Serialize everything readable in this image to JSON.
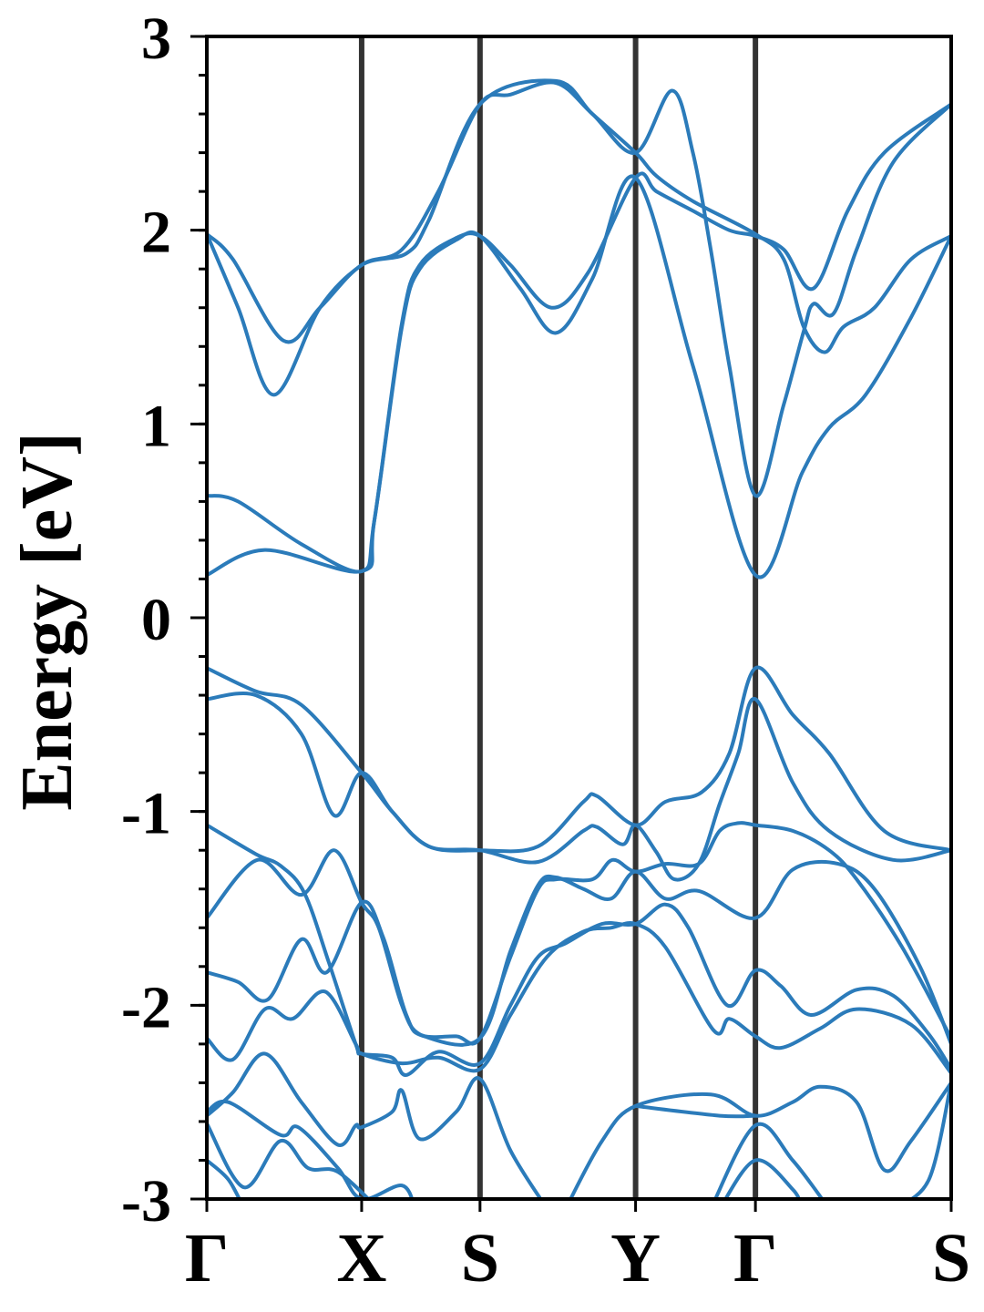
{
  "chart_data": {
    "type": "line",
    "title": "",
    "ylabel": "Energy [eV]",
    "xlabel": "",
    "ylim": [
      -3,
      3
    ],
    "xlim": [
      0,
      1
    ],
    "yticks": [
      "3",
      "2",
      "1",
      "0",
      "-1",
      "-2",
      "-3"
    ],
    "ytick_values": [
      3,
      2,
      1,
      0,
      -1,
      -2,
      -3
    ],
    "yminor_step": 0.2,
    "kpoints": [
      {
        "label": "Γ",
        "k": 0
      },
      {
        "label": "X",
        "k": 0.208
      },
      {
        "label": "S",
        "k": 0.367
      },
      {
        "label": "Y",
        "k": 0.576
      },
      {
        "label": "Γ",
        "k": 0.737
      },
      {
        "label": "S",
        "k": 1.0
      }
    ],
    "colors": {
      "bands": "#2b7bba",
      "kpoint_lines": "#333333",
      "axes": "#000000"
    },
    "grid": false,
    "bands": [
      [
        [
          0,
          0.22
        ],
        [
          0.078,
          0.35
        ],
        [
          0.208,
          0.24
        ],
        [
          0.225,
          0.5
        ],
        [
          0.262,
          1.5
        ],
        [
          0.286,
          1.8
        ],
        [
          0.335,
          1.95
        ],
        [
          0.367,
          1.97
        ],
        [
          0.421,
          1.7
        ],
        [
          0.469,
          1.47
        ],
        [
          0.518,
          1.75
        ],
        [
          0.576,
          2.27
        ],
        [
          0.653,
          1.3
        ],
        [
          0.737,
          0.22
        ],
        [
          0.8,
          0.75
        ],
        [
          0.836,
          0.98
        ],
        [
          0.885,
          1.15
        ],
        [
          0.946,
          1.55
        ],
        [
          1,
          1.97
        ]
      ],
      [
        [
          0,
          0.63
        ],
        [
          0.042,
          0.6
        ],
        [
          0.127,
          0.38
        ],
        [
          0.208,
          0.24
        ],
        [
          0.225,
          0.5
        ],
        [
          0.262,
          1.52
        ],
        [
          0.286,
          1.82
        ],
        [
          0.335,
          1.96
        ],
        [
          0.367,
          1.97
        ],
        [
          0.408,
          1.82
        ],
        [
          0.463,
          1.6
        ],
        [
          0.512,
          1.78
        ],
        [
          0.576,
          2.27
        ],
        [
          0.604,
          2.2
        ],
        [
          0.653,
          2.1
        ],
        [
          0.702,
          2.0
        ],
        [
          0.737,
          1.97
        ],
        [
          0.775,
          1.9
        ],
        [
          0.815,
          1.7
        ],
        [
          0.861,
          2.1
        ],
        [
          0.91,
          2.4
        ],
        [
          1,
          2.65
        ]
      ],
      [
        [
          0,
          1.98
        ],
        [
          0.042,
          1.6
        ],
        [
          0.09,
          1.15
        ],
        [
          0.152,
          1.6
        ],
        [
          0.208,
          1.82
        ],
        [
          0.262,
          1.9
        ],
        [
          0.311,
          2.2
        ],
        [
          0.367,
          2.65
        ],
        [
          0.408,
          2.7
        ],
        [
          0.469,
          2.76
        ],
        [
          0.518,
          2.6
        ],
        [
          0.576,
          2.4
        ],
        [
          0.625,
          2.72
        ],
        [
          0.653,
          2.4
        ],
        [
          0.677,
          1.9
        ],
        [
          0.702,
          1.3
        ],
        [
          0.737,
          0.63
        ],
        [
          0.775,
          1.1
        ],
        [
          0.802,
          1.48
        ],
        [
          0.815,
          1.62
        ],
        [
          0.842,
          1.57
        ],
        [
          0.873,
          1.9
        ],
        [
          0.922,
          2.35
        ],
        [
          1,
          2.65
        ]
      ],
      [
        [
          0,
          1.98
        ],
        [
          0.035,
          1.85
        ],
        [
          0.103,
          1.43
        ],
        [
          0.152,
          1.6
        ],
        [
          0.208,
          1.82
        ],
        [
          0.268,
          1.88
        ],
        [
          0.298,
          2.05
        ],
        [
          0.367,
          2.65
        ],
        [
          0.469,
          2.77
        ],
        [
          0.518,
          2.6
        ],
        [
          0.576,
          2.4
        ],
        [
          0.604,
          2.28
        ],
        [
          0.653,
          2.15
        ],
        [
          0.737,
          1.98
        ],
        [
          0.775,
          1.85
        ],
        [
          0.802,
          1.5
        ],
        [
          0.83,
          1.37
        ],
        [
          0.855,
          1.5
        ],
        [
          0.897,
          1.6
        ],
        [
          0.946,
          1.85
        ],
        [
          1,
          1.97
        ]
      ],
      [
        [
          0,
          -0.26
        ],
        [
          0.066,
          -0.38
        ],
        [
          0.127,
          -0.45
        ],
        [
          0.208,
          -0.8
        ],
        [
          0.249,
          -1.0
        ],
        [
          0.298,
          -1.18
        ],
        [
          0.367,
          -1.2
        ],
        [
          0.445,
          -1.18
        ],
        [
          0.506,
          -0.95
        ],
        [
          0.524,
          -0.92
        ],
        [
          0.576,
          -1.07
        ],
        [
          0.616,
          -0.95
        ],
        [
          0.665,
          -0.9
        ],
        [
          0.702,
          -0.7
        ],
        [
          0.737,
          -0.26
        ],
        [
          0.787,
          -0.5
        ],
        [
          0.836,
          -0.7
        ],
        [
          0.91,
          -1.1
        ],
        [
          1,
          -1.2
        ]
      ],
      [
        [
          0,
          -0.42
        ],
        [
          0.066,
          -0.4
        ],
        [
          0.127,
          -0.6
        ],
        [
          0.171,
          -1.02
        ],
        [
          0.208,
          -0.8
        ],
        [
          0.249,
          -1.0
        ],
        [
          0.298,
          -1.18
        ],
        [
          0.367,
          -1.2
        ],
        [
          0.445,
          -1.26
        ],
        [
          0.506,
          -1.1
        ],
        [
          0.524,
          -1.08
        ],
        [
          0.559,
          -1.17
        ],
        [
          0.576,
          -1.07
        ],
        [
          0.604,
          -1.21
        ],
        [
          0.628,
          -1.35
        ],
        [
          0.661,
          -1.27
        ],
        [
          0.689,
          -0.96
        ],
        [
          0.714,
          -0.7
        ],
        [
          0.737,
          -0.42
        ],
        [
          0.787,
          -0.85
        ],
        [
          0.836,
          -1.1
        ],
        [
          0.922,
          -1.25
        ],
        [
          1,
          -1.2
        ]
      ],
      [
        [
          0,
          -1.07
        ],
        [
          0.066,
          -1.22
        ],
        [
          0.099,
          -1.28
        ],
        [
          0.131,
          -1.42
        ],
        [
          0.164,
          -1.78
        ],
        [
          0.2,
          -2.2
        ],
        [
          0.208,
          -2.25
        ],
        [
          0.249,
          -2.27
        ],
        [
          0.268,
          -2.36
        ],
        [
          0.311,
          -2.24
        ],
        [
          0.367,
          -2.3
        ],
        [
          0.408,
          -2.0
        ],
        [
          0.445,
          -1.75
        ],
        [
          0.482,
          -1.68
        ],
        [
          0.531,
          -1.58
        ],
        [
          0.576,
          -1.58
        ],
        [
          0.616,
          -1.48
        ],
        [
          0.647,
          -1.6
        ],
        [
          0.699,
          -2.0
        ],
        [
          0.737,
          -1.82
        ],
        [
          0.771,
          -1.9
        ],
        [
          0.812,
          -2.05
        ],
        [
          0.873,
          -1.92
        ],
        [
          0.922,
          -1.95
        ],
        [
          0.97,
          -2.15
        ],
        [
          1,
          -2.33
        ]
      ],
      [
        [
          0,
          -1.55
        ],
        [
          0.068,
          -1.25
        ],
        [
          0.127,
          -1.43
        ],
        [
          0.171,
          -1.2
        ],
        [
          0.208,
          -1.47
        ],
        [
          0.231,
          -1.6
        ],
        [
          0.262,
          -2.0
        ],
        [
          0.286,
          -2.15
        ],
        [
          0.335,
          -2.16
        ],
        [
          0.367,
          -2.17
        ],
        [
          0.408,
          -1.75
        ],
        [
          0.445,
          -1.4
        ],
        [
          0.469,
          -1.35
        ],
        [
          0.518,
          -1.35
        ],
        [
          0.545,
          -1.25
        ],
        [
          0.576,
          -1.31
        ],
        [
          0.616,
          -1.27
        ],
        [
          0.661,
          -1.27
        ],
        [
          0.689,
          -1.1
        ],
        [
          0.714,
          -1.06
        ],
        [
          0.737,
          -1.07
        ],
        [
          0.787,
          -1.1
        ],
        [
          0.836,
          -1.2
        ],
        [
          0.873,
          -1.35
        ],
        [
          0.934,
          -1.7
        ],
        [
          1,
          -2.17
        ]
      ],
      [
        [
          0,
          -1.83
        ],
        [
          0.042,
          -1.88
        ],
        [
          0.082,
          -1.97
        ],
        [
          0.127,
          -1.66
        ],
        [
          0.161,
          -1.83
        ],
        [
          0.208,
          -1.47
        ],
        [
          0.237,
          -1.65
        ],
        [
          0.268,
          -2.05
        ],
        [
          0.292,
          -2.16
        ],
        [
          0.367,
          -2.17
        ],
        [
          0.408,
          -1.72
        ],
        [
          0.445,
          -1.38
        ],
        [
          0.469,
          -1.34
        ],
        [
          0.506,
          -1.4
        ],
        [
          0.543,
          -1.45
        ],
        [
          0.576,
          -1.31
        ],
        [
          0.616,
          -1.45
        ],
        [
          0.661,
          -1.41
        ],
        [
          0.737,
          -1.55
        ],
        [
          0.787,
          -1.3
        ],
        [
          0.848,
          -1.27
        ],
        [
          0.897,
          -1.4
        ],
        [
          0.958,
          -1.8
        ],
        [
          1,
          -2.2
        ]
      ],
      [
        [
          0,
          -2.17
        ],
        [
          0.035,
          -2.28
        ],
        [
          0.078,
          -2.02
        ],
        [
          0.115,
          -2.07
        ],
        [
          0.159,
          -1.93
        ],
        [
          0.2,
          -2.2
        ],
        [
          0.208,
          -2.25
        ],
        [
          0.262,
          -2.3
        ],
        [
          0.311,
          -2.27
        ],
        [
          0.367,
          -2.33
        ],
        [
          0.408,
          -2.05
        ],
        [
          0.457,
          -1.75
        ],
        [
          0.506,
          -1.62
        ],
        [
          0.543,
          -1.6
        ],
        [
          0.576,
          -1.58
        ],
        [
          0.616,
          -1.7
        ],
        [
          0.681,
          -2.13
        ],
        [
          0.702,
          -2.07
        ],
        [
          0.737,
          -2.16
        ],
        [
          0.771,
          -2.22
        ],
        [
          0.824,
          -2.12
        ],
        [
          0.873,
          -2.02
        ],
        [
          0.946,
          -2.1
        ],
        [
          1,
          -2.35
        ]
      ],
      [
        [
          0,
          -2.57
        ],
        [
          0.035,
          -2.45
        ],
        [
          0.078,
          -2.25
        ],
        [
          0.127,
          -2.5
        ],
        [
          0.176,
          -2.72
        ],
        [
          0.2,
          -2.62
        ],
        [
          0.208,
          -2.63
        ],
        [
          0.249,
          -2.55
        ],
        [
          0.262,
          -2.44
        ],
        [
          0.286,
          -2.69
        ],
        [
          0.335,
          -2.55
        ],
        [
          0.367,
          -2.38
        ],
        [
          0.408,
          -2.75
        ],
        [
          0.457,
          -3.05
        ]
      ],
      [
        [
          0,
          -2.55
        ],
        [
          0.029,
          -2.5
        ],
        [
          0.099,
          -2.67
        ],
        [
          0.123,
          -2.63
        ],
        [
          0.176,
          -2.84
        ],
        [
          0.208,
          -3.0
        ],
        [
          0.262,
          -2.93
        ],
        [
          0.28,
          -3.05
        ]
      ],
      [
        [
          0,
          -2.61
        ],
        [
          0.05,
          -2.94
        ],
        [
          0.099,
          -2.7
        ],
        [
          0.136,
          -2.84
        ],
        [
          0.176,
          -2.86
        ],
        [
          0.23,
          -3.05
        ]
      ],
      [
        [
          0,
          -2.8
        ],
        [
          0.029,
          -2.9
        ],
        [
          0.05,
          -3.05
        ]
      ],
      [
        [
          0.482,
          -3.05
        ],
        [
          0.531,
          -2.7
        ],
        [
          0.576,
          -2.52
        ],
        [
          0.677,
          -2.46
        ],
        [
          0.737,
          -2.57
        ],
        [
          0.787,
          -2.5
        ],
        [
          0.824,
          -2.42
        ],
        [
          0.873,
          -2.5
        ],
        [
          0.91,
          -2.85
        ],
        [
          0.946,
          -2.7
        ],
        [
          1,
          -2.4
        ]
      ],
      [
        [
          0.576,
          -2.52
        ],
        [
          0.689,
          -2.57
        ],
        [
          0.737,
          -2.57
        ]
      ],
      [
        [
          0.677,
          -3.05
        ],
        [
          0.737,
          -2.62
        ],
        [
          0.787,
          -2.8
        ],
        [
          0.836,
          -3.05
        ]
      ],
      [
        [
          0.689,
          -3.05
        ],
        [
          0.737,
          -2.8
        ],
        [
          0.787,
          -2.95
        ],
        [
          0.8,
          -3.05
        ]
      ],
      [
        [
          0.922,
          -3.05
        ],
        [
          0.97,
          -2.9
        ],
        [
          1,
          -2.4
        ]
      ]
    ]
  }
}
